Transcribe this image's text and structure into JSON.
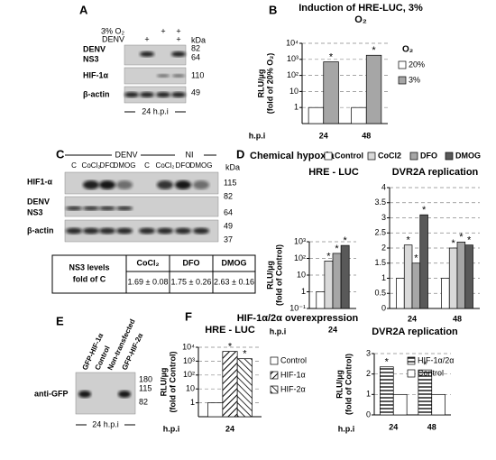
{
  "panels": {
    "letters": [
      "A",
      "B",
      "C",
      "D",
      "E",
      "F"
    ],
    "A": {
      "conditions": [
        {
          "label": "3% O₂",
          "lanes": [
            null,
            null,
            "+",
            "+"
          ]
        },
        {
          "label": "DENV",
          "lanes": [
            null,
            "+",
            null,
            "+"
          ]
        }
      ],
      "unit": "kDa",
      "blots": [
        [
          "DENV",
          "NS3"
        ],
        [
          "HIF-1α"
        ],
        [
          "β-actin"
        ]
      ],
      "markers": [
        "82",
        "64",
        "110",
        "49"
      ],
      "footer": "24 h.p.i"
    },
    "C": {
      "groups": [
        "DENV",
        "NI"
      ],
      "lanes": [
        "C",
        "CoCl₂",
        "DFO",
        "DMOG",
        "C",
        "CoCl₂",
        "DFO",
        "DMOG"
      ],
      "unit": "kDa",
      "blots": [
        [
          "HIF1-α"
        ],
        [
          "DENV",
          "NS3"
        ],
        [
          "β-actin"
        ]
      ],
      "markers": [
        "115",
        "82",
        "64",
        "49",
        "37"
      ],
      "table": {
        "row_label": [
          "NS3 levels",
          "fold of C"
        ],
        "columns": [
          "CoCl₂",
          "DFO",
          "DMOG"
        ],
        "cells": [
          "1.69 ± 0.08",
          "1.75 ± 0.26",
          "2.63 ± 0.16"
        ]
      }
    },
    "D": {
      "title": "Chemical hypoxia"
    },
    "E": {
      "lanes": [
        "GFP-HIF-1α",
        "Control",
        "Non-transfected",
        "GFP-HIF-2α"
      ],
      "blot": "anti-GFP",
      "markers": [
        "180",
        "115",
        "82"
      ],
      "footer": "24 h.p.i"
    },
    "F": {
      "title": "HIF-1α/2α overexpression"
    }
  },
  "chart_data": [
    {
      "type": "bar",
      "title": "Induction of HRE-LUC, 3% O₂",
      "ylabel": [
        "RLU/µg",
        "(fold of 20% O₂)"
      ],
      "xlabel": "h.p.i",
      "categories": [
        "24",
        "48"
      ],
      "log": true,
      "grid": true,
      "legend_title": "O₂",
      "ylim": [
        0.1,
        10000
      ],
      "yticks": [
        1,
        10,
        {
          "value": 100,
          "label": "10²"
        },
        {
          "value": 1000,
          "label": "10³"
        },
        {
          "value": 10000,
          "label": "10⁴"
        }
      ],
      "series": [
        {
          "name": "20%",
          "color": "#ffffff",
          "values": [
            1,
            1
          ],
          "significance": [
            null,
            null
          ]
        },
        {
          "name": "3%",
          "color": "#a6a6a6",
          "values": [
            700,
            1800
          ],
          "significance": [
            "*",
            "*"
          ]
        }
      ]
    },
    {
      "type": "bar",
      "title": "HRE - LUC",
      "ylabel": [
        "RLU/µg",
        "(fold of Control)"
      ],
      "xlabel": "h.p.i",
      "categories": [
        "24"
      ],
      "log": true,
      "grid": true,
      "ylim": [
        0.1,
        1000
      ],
      "yticks": [
        {
          "value": 0.1,
          "label": "10⁻¹"
        },
        1,
        10,
        {
          "value": 100,
          "label": "10²"
        },
        {
          "value": 1000,
          "label": "10³"
        }
      ],
      "series": [
        {
          "name": "Control",
          "color": "#ffffff",
          "values": [
            1
          ],
          "significance": [
            null
          ]
        },
        {
          "name": "CoCl2",
          "color": "#d9d9d9",
          "values": [
            70
          ],
          "significance": [
            "*"
          ]
        },
        {
          "name": "DFO",
          "color": "#a6a6a6",
          "values": [
            200
          ],
          "significance": [
            "*"
          ]
        },
        {
          "name": "DMOG",
          "color": "#595959",
          "values": [
            600
          ],
          "significance": [
            "*"
          ]
        }
      ]
    },
    {
      "type": "bar",
      "title": "DVR2A replication",
      "categories": [
        "24",
        "48"
      ],
      "log": false,
      "grid": true,
      "ylim": [
        0,
        4
      ],
      "yticks": [
        0,
        0.5,
        1,
        1.5,
        2,
        2.5,
        3,
        3.5,
        4
      ],
      "series": [
        {
          "name": "Control",
          "color": "#ffffff",
          "values": [
            1,
            1
          ],
          "significance": [
            null,
            null
          ]
        },
        {
          "name": "CoCl2",
          "color": "#d9d9d9",
          "values": [
            2.1,
            2.0
          ],
          "significance": [
            "*",
            "*"
          ]
        },
        {
          "name": "DFO",
          "color": "#a6a6a6",
          "values": [
            1.5,
            2.2
          ],
          "significance": [
            "*",
            "*"
          ]
        },
        {
          "name": "DMOG",
          "color": "#595959",
          "values": [
            3.1,
            2.1
          ],
          "significance": [
            "*",
            "*"
          ]
        }
      ]
    },
    {
      "type": "bar",
      "title": "HRE - LUC",
      "ylabel": [
        "RLU/µg",
        "(fold of Control)"
      ],
      "xlabel": "h.p.i",
      "categories": [
        "24"
      ],
      "log": true,
      "grid": true,
      "ylim": [
        0.1,
        10000
      ],
      "yticks": [
        1,
        10,
        {
          "value": 100,
          "label": "10²"
        },
        {
          "value": 1000,
          "label": "10³"
        },
        {
          "value": 10000,
          "label": "10⁴"
        }
      ],
      "series": [
        {
          "name": "Control",
          "color": "#ffffff",
          "values": [
            1
          ],
          "significance": [
            null
          ]
        },
        {
          "name": "HIF-1α",
          "color": "#000000",
          "pattern": "diagonal",
          "values": [
            5000
          ],
          "significance": [
            "*"
          ]
        },
        {
          "name": "HIF-2α",
          "color": "#000000",
          "pattern": "anti-diagonal",
          "values": [
            1500
          ],
          "significance": [
            "*"
          ]
        }
      ]
    },
    {
      "type": "bar",
      "title": "DVR2A replication",
      "ylabel": [
        "RLU/µg",
        "(fold of Control)"
      ],
      "xlabel": "h.p.i",
      "categories": [
        "24",
        "48"
      ],
      "log": false,
      "grid": true,
      "ylim": [
        0,
        3
      ],
      "yticks": [
        0,
        1,
        2,
        3
      ],
      "series": [
        {
          "name": "HIF-1α/2α",
          "color": "#000000",
          "pattern": "horizontal",
          "values": [
            2.35,
            2.2
          ],
          "significance": [
            "*",
            "*"
          ]
        },
        {
          "name": "Control",
          "color": "#ffffff",
          "values": [
            1,
            1
          ],
          "significance": [
            null,
            null
          ]
        }
      ]
    }
  ]
}
